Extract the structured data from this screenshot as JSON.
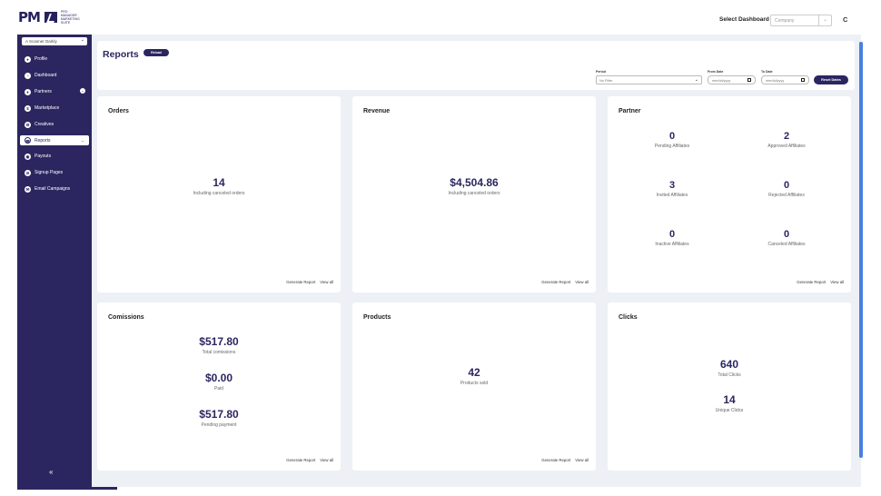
{
  "header": {
    "logo_text": "PM",
    "logo_sub": "PRO MANAGER MARKETING SUITE",
    "select_dashboard_label": "Select Dashboard",
    "dashboard_value": "Company",
    "avatar_initial": "C"
  },
  "sidebar": {
    "site_select": "A Scanner Darkly",
    "items": [
      {
        "label": "Profile",
        "icon": "user-icon"
      },
      {
        "label": "Dashboard",
        "icon": "pie-chart-icon"
      },
      {
        "label": "Partners",
        "icon": "person-icon"
      },
      {
        "label": "Marketplace",
        "icon": "dollar-icon"
      },
      {
        "label": "Creatives",
        "icon": "gear-icon"
      },
      {
        "label": "Reports",
        "icon": "document-icon"
      },
      {
        "label": "Payouts",
        "icon": "payout-icon"
      },
      {
        "label": "Signup Pages",
        "icon": "link-icon"
      },
      {
        "label": "Email Campaigns",
        "icon": "mail-icon"
      }
    ],
    "collapse_label": "«"
  },
  "reports": {
    "title": "Reports",
    "reload_label": "Reload",
    "period_label": "Period",
    "period_value": "No Filter",
    "from_label": "From Date",
    "from_placeholder": "mm/dd/yyyy",
    "to_label": "To Date",
    "to_placeholder": "mm/dd/yyyy",
    "reset_label": "Reset Dates"
  },
  "links": {
    "generate": "Generate Report",
    "view_all": "View all"
  },
  "orders": {
    "title": "Orders",
    "value": "14",
    "caption": "Including canceled orders"
  },
  "revenue": {
    "title": "Revenue",
    "value": "$4,504.86",
    "caption": "Including canceled orders"
  },
  "partner": {
    "title": "Partner",
    "stats": [
      {
        "value": "0",
        "label": "Pending Affiliates"
      },
      {
        "value": "2",
        "label": "Approved Affiliates"
      },
      {
        "value": "3",
        "label": "Invited Affiliates"
      },
      {
        "value": "0",
        "label": "Rejected Affiliates"
      },
      {
        "value": "0",
        "label": "Inactive Affiliates"
      },
      {
        "value": "0",
        "label": "Canceled Affiliates"
      }
    ]
  },
  "commissions": {
    "title": "Comissions",
    "stats": [
      {
        "value": "$517.80",
        "label": "Total comissions"
      },
      {
        "value": "$0.00",
        "label": "Paid"
      },
      {
        "value": "$517.80",
        "label": "Pending payment"
      }
    ]
  },
  "products": {
    "title": "Products",
    "value": "42",
    "caption": "Products sold"
  },
  "clicks": {
    "title": "Clicks",
    "stats": [
      {
        "value": "640",
        "label": "Total Clicks"
      },
      {
        "value": "14",
        "label": "Unique Clicks"
      }
    ]
  }
}
